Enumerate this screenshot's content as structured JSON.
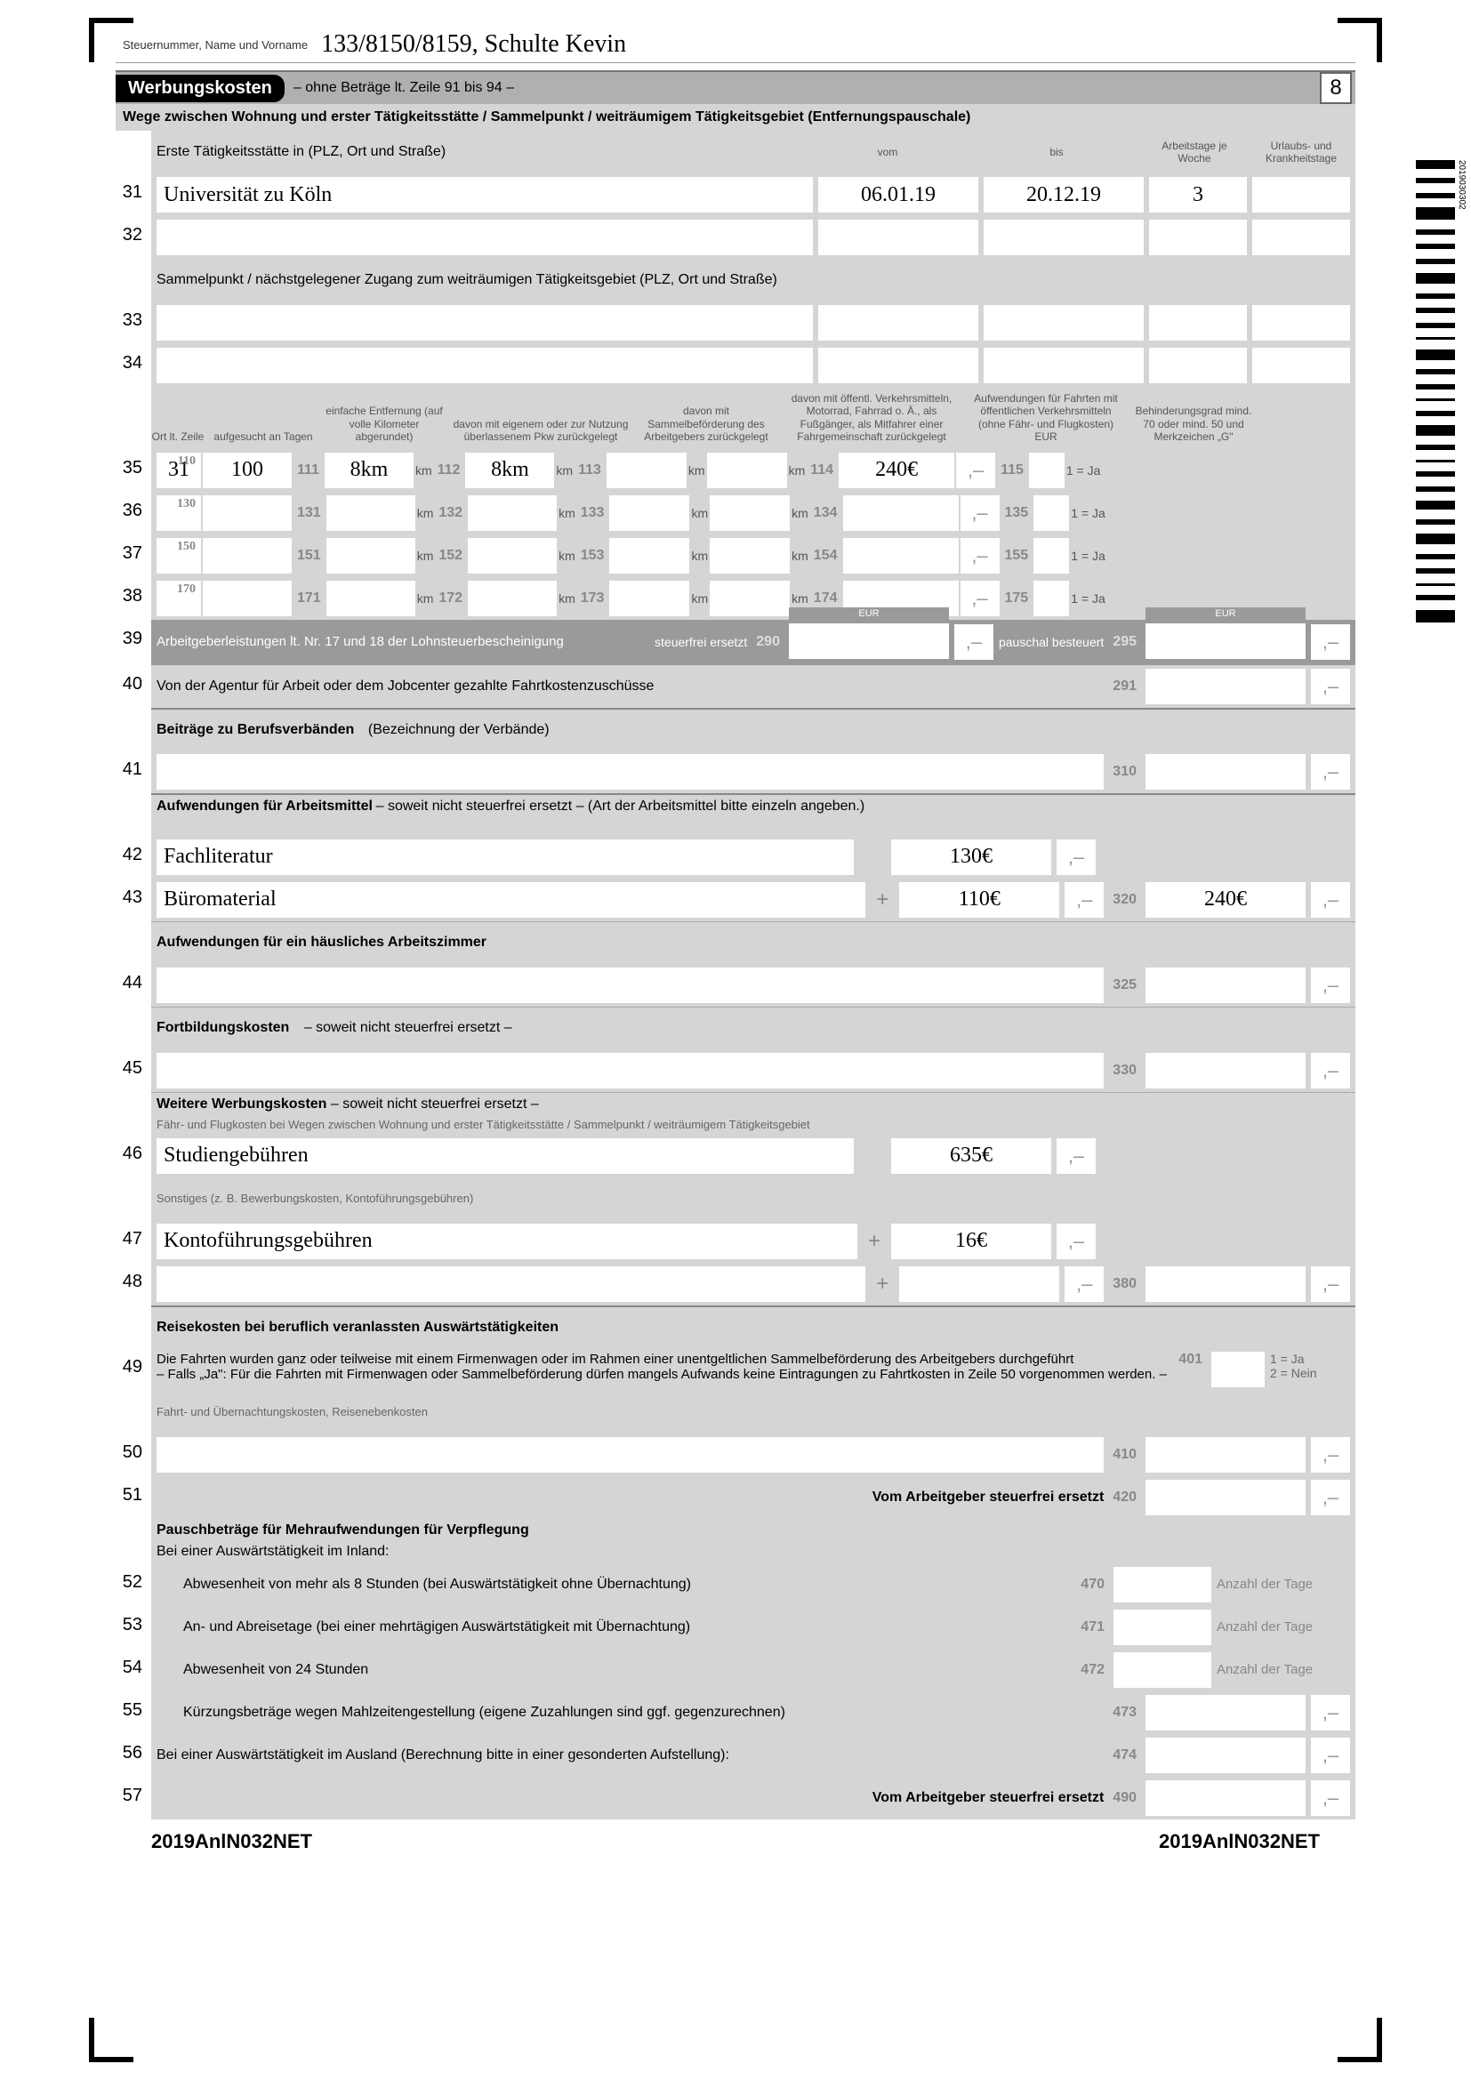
{
  "header": {
    "steuernummer_label": "Steuernummer, Name und Vorname",
    "steuernummer_value": "133/8150/8159, Schulte Kevin"
  },
  "section": {
    "title": "Werbungskosten",
    "subtitle": "– ohne Beträge lt. Zeile 91 bis 94 –",
    "page_number": "8",
    "line2": "Wege zwischen Wohnung und erster Tätigkeitsstätte / Sammelpunkt / weiträumigem Tätigkeitsgebiet",
    "line2_suffix": "(Entfernungspauschale)"
  },
  "workplace": {
    "label": "Erste Tätigkeitsstätte in (PLZ, Ort und Straße)",
    "vom": "vom",
    "bis": "bis",
    "arbeitstage": "Arbeitstage je Woche",
    "urlaub": "Urlaubs- und Krankheitstage",
    "rows": [
      {
        "num": "31",
        "place": "Universität zu Köln",
        "from": "06.01.19",
        "to": "20.12.19",
        "days": "3",
        "sick": ""
      },
      {
        "num": "32",
        "place": "",
        "from": "",
        "to": "",
        "days": "",
        "sick": ""
      }
    ],
    "sammel_label": "Sammelpunkt / nächstgelegener Zugang zum weiträumigen Tätigkeitsgebiet (PLZ, Ort und Straße)",
    "sammel_rows": [
      {
        "num": "33"
      },
      {
        "num": "34"
      }
    ]
  },
  "commute_headers": {
    "h1": "Ort lt. Zeile",
    "h2": "aufgesucht an Tagen",
    "h3": "einfache Entfernung (auf volle Kilometer abgerundet)",
    "h4": "davon mit eigenem oder zur Nutzung überlassenem Pkw zurückgelegt",
    "h5": "davon mit Sammelbeförderung des Arbeitgebers zurückgelegt",
    "h6": "davon mit öffentl. Verkehrsmitteln, Motorrad, Fahrrad o. Ä., als Fußgänger, als Mitfahrer einer Fahrgemeinschaft zurückgelegt",
    "h7": "Aufwendungen für Fahrten mit öffentlichen Verkehrsmitteln (ohne Fähr- und Flugkosten) EUR",
    "h8": "Behinderungsgrad mind. 70 oder mind. 50 und Merkzeichen „G\""
  },
  "commute_rows": [
    {
      "num": "35",
      "ort": "31",
      "f110": "110",
      "tagen": "100",
      "f111": "111",
      "entf": "8km",
      "f112": "112",
      "pkw": "8km",
      "f113": "113",
      "sb": "",
      "oev": "",
      "f114": "114",
      "aufw": "240€",
      "f115": "115",
      "ja": "1 = Ja"
    },
    {
      "num": "36",
      "ort": "",
      "f110": "130",
      "tagen": "",
      "f111": "131",
      "entf": "",
      "f112": "132",
      "pkw": "",
      "f113": "133",
      "sb": "",
      "oev": "",
      "f114": "134",
      "aufw": "",
      "f115": "135",
      "ja": "1 = Ja"
    },
    {
      "num": "37",
      "ort": "",
      "f110": "150",
      "tagen": "",
      "f111": "151",
      "entf": "",
      "f112": "152",
      "pkw": "",
      "f113": "153",
      "sb": "",
      "oev": "",
      "f114": "154",
      "aufw": "",
      "f115": "155",
      "ja": "1 = Ja"
    },
    {
      "num": "38",
      "ort": "",
      "f110": "170",
      "tagen": "",
      "f111": "171",
      "entf": "",
      "f112": "172",
      "pkw": "",
      "f113": "173",
      "sb": "",
      "oev": "",
      "f114": "174",
      "aufw": "",
      "f115": "175",
      "ja": "1 = Ja"
    }
  ],
  "line39": {
    "num": "39",
    "label": "Arbeitgeberleistungen lt. Nr. 17 und 18 der Lohnsteuerbescheinigung",
    "l1": "steuerfrei ersetzt",
    "f290": "290",
    "l2": "pauschal besteuert",
    "f295": "295",
    "eur": "EUR"
  },
  "line40": {
    "num": "40",
    "label": "Von der Agentur für Arbeit oder dem Jobcenter gezahlte Fahrtkostenzuschüsse",
    "f": "291"
  },
  "berufsv": {
    "title": "Beiträge zu Berufsverbänden",
    "paren": "(Bezeichnung der Verbände)"
  },
  "line41": {
    "num": "41",
    "f": "310"
  },
  "arbeitsmittel": {
    "title": "Aufwendungen für Arbeitsmittel",
    "sub": "– soweit nicht steuerfrei ersetzt – (Art der Arbeitsmittel bitte einzeln angeben.)",
    "eur": "EUR"
  },
  "line42": {
    "num": "42",
    "desc": "Fachliteratur",
    "val": "130€"
  },
  "line43": {
    "num": "43",
    "desc": "Büromaterial",
    "val": "110€",
    "f": "320",
    "sum": "240€"
  },
  "az_title": "Aufwendungen für ein häusliches Arbeitszimmer",
  "line44": {
    "num": "44",
    "f": "325"
  },
  "fb_title": "Fortbildungskosten",
  "fb_sub": "– soweit nicht steuerfrei ersetzt –",
  "line45": {
    "num": "45",
    "f": "330"
  },
  "ww_title": "Weitere Werbungskosten",
  "ww_sub": "– soweit nicht steuerfrei ersetzt –",
  "ww_sub2": "Fähr- und Flugkosten bei Wegen zwischen Wohnung und erster Tätigkeitsstätte / Sammelpunkt / weiträumigem Tätigkeitsgebiet",
  "line46": {
    "num": "46",
    "desc": "Studiengebühren",
    "val": "635€"
  },
  "sonst": "Sonstiges (z. B. Bewerbungskosten, Kontoführungsgebühren)",
  "line47": {
    "num": "47",
    "desc": "Kontoführungsgebühren",
    "val": "16€"
  },
  "line48": {
    "num": "48",
    "f": "380"
  },
  "reise_title": "Reisekosten bei beruflich veranlassten Auswärtstätigkeiten",
  "line49": {
    "num": "49",
    "text1": "Die Fahrten wurden ganz oder teilweise mit einem Firmenwagen oder im Rahmen einer unentgeltlichen Sammelbeförderung des Arbeitgebers durchgeführt",
    "text2": "– Falls „Ja\": Für die Fahrten mit Firmenwagen oder Sammelbeförderung dürfen mangels Aufwands keine Eintragungen zu Fahrtkosten in Zeile 50 vorgenommen werden. –",
    "f": "401",
    "opt": "1 = Ja\n2 = Nein"
  },
  "fuk": "Fahrt- und Übernachtungskosten, Reisenebenkosten",
  "line50": {
    "num": "50",
    "f": "410"
  },
  "line51": {
    "num": "51",
    "text": "Vom Arbeitgeber steuerfrei ersetzt",
    "f": "420"
  },
  "pauschb": "Pauschbeträge für Mehraufwendungen für Verpflegung",
  "inland": "Bei einer Auswärtstätigkeit im Inland:",
  "line52": {
    "num": "52",
    "text": "Abwesenheit von mehr als 8 Stunden (bei Auswärtstätigkeit ohne Übernachtung)",
    "f": "470",
    "tage": "Anzahl der Tage"
  },
  "line53": {
    "num": "53",
    "text": "An- und Abreisetage (bei einer mehrtägigen Auswärtstätigkeit mit Übernachtung)",
    "f": "471",
    "tage": "Anzahl der Tage"
  },
  "line54": {
    "num": "54",
    "text": "Abwesenheit von 24 Stunden",
    "f": "472",
    "tage": "Anzahl der Tage"
  },
  "line55": {
    "num": "55",
    "text": "Kürzungsbeträge wegen Mahlzeitengestellung (eigene Zuzahlungen sind ggf. gegenzurechnen)",
    "f": "473"
  },
  "line56": {
    "num": "56",
    "text": "Bei einer Auswärtstätigkeit im Ausland (Berechnung bitte in einer gesonderten Aufstellung):",
    "f": "474"
  },
  "line57": {
    "num": "57",
    "text": "Vom Arbeitgeber steuerfrei ersetzt",
    "f": "490"
  },
  "footer": "2019AnlN032NET",
  "barcode_text": "2019030302"
}
